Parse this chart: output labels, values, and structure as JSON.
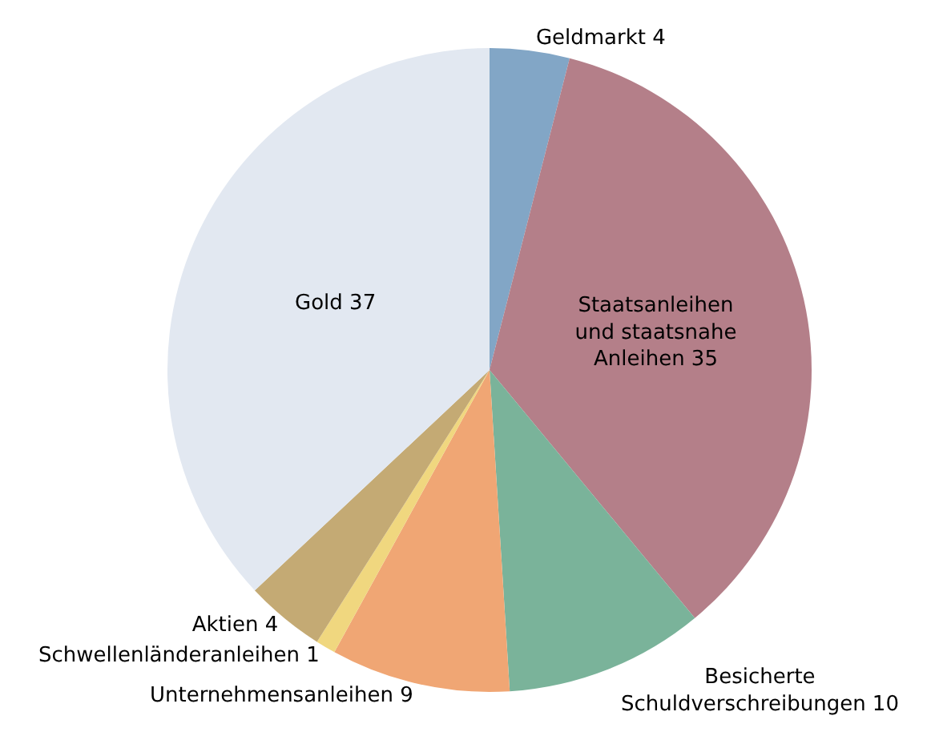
{
  "chart_data": {
    "type": "pie",
    "categories": [
      "Geldmarkt",
      "Staatsanleihen und staatsnahe Anleihen",
      "Besicherte Schuldverschreibungen",
      "Unternehmensanleihen",
      "Schwellenländeranleihen",
      "Aktien",
      "Gold"
    ],
    "values": [
      4,
      35,
      10,
      9,
      1,
      4,
      37
    ],
    "colors": [
      "#82a6c6",
      "#b47f89",
      "#7ab39a",
      "#f0a674",
      "#f0d77f",
      "#c4aa74",
      "#e2e8f1"
    ],
    "data_labels": true,
    "legend": false
  }
}
